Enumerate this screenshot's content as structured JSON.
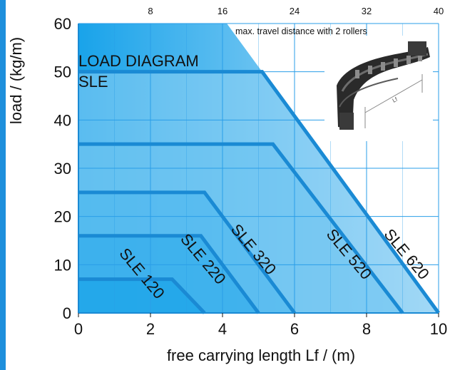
{
  "chart_data": {
    "type": "line",
    "title": "LOAD DIAGRAM SLE",
    "title_lines": [
      "LOAD DIAGRAM",
      "SLE"
    ],
    "xlabel": "free carrying length Lf / (m)",
    "ylabel": "load / (kg/m)",
    "xlim": [
      0,
      10
    ],
    "ylim": [
      0,
      60
    ],
    "xticks": [
      "0",
      "2",
      "4",
      "6",
      "8",
      "10"
    ],
    "yticks": [
      "0",
      "10",
      "20",
      "30",
      "40",
      "50",
      "60"
    ],
    "top_axis": {
      "label": "max. travel distance with 2 rollers",
      "ticks": [
        "8",
        "16",
        "24",
        "32",
        "40"
      ],
      "positions_in_x_units": [
        2,
        4,
        6,
        8,
        10
      ]
    },
    "grid": true,
    "series": [
      {
        "name": "SLE 120",
        "x": [
          0,
          2.6,
          3.5
        ],
        "y": [
          7,
          7,
          0
        ]
      },
      {
        "name": "SLE 220",
        "x": [
          0,
          3.4,
          5.0
        ],
        "y": [
          16,
          16,
          0
        ]
      },
      {
        "name": "SLE 320",
        "x": [
          0,
          3.5,
          6.0
        ],
        "y": [
          25,
          25,
          0
        ]
      },
      {
        "name": "SLE 520",
        "x": [
          0,
          5.4,
          9.0
        ],
        "y": [
          35,
          35,
          0
        ]
      },
      {
        "name": "SLE 620",
        "x": [
          0,
          5.1,
          10.0
        ],
        "y": [
          50,
          50,
          0
        ]
      }
    ],
    "inset_image_label": "Lf",
    "colors": {
      "line": "#1a8ad4",
      "fill_light": "#9fd3f3",
      "fill_dark": "#0d9de6",
      "grid": "#2a9ee8",
      "stripe": "#1e8fdc"
    }
  }
}
